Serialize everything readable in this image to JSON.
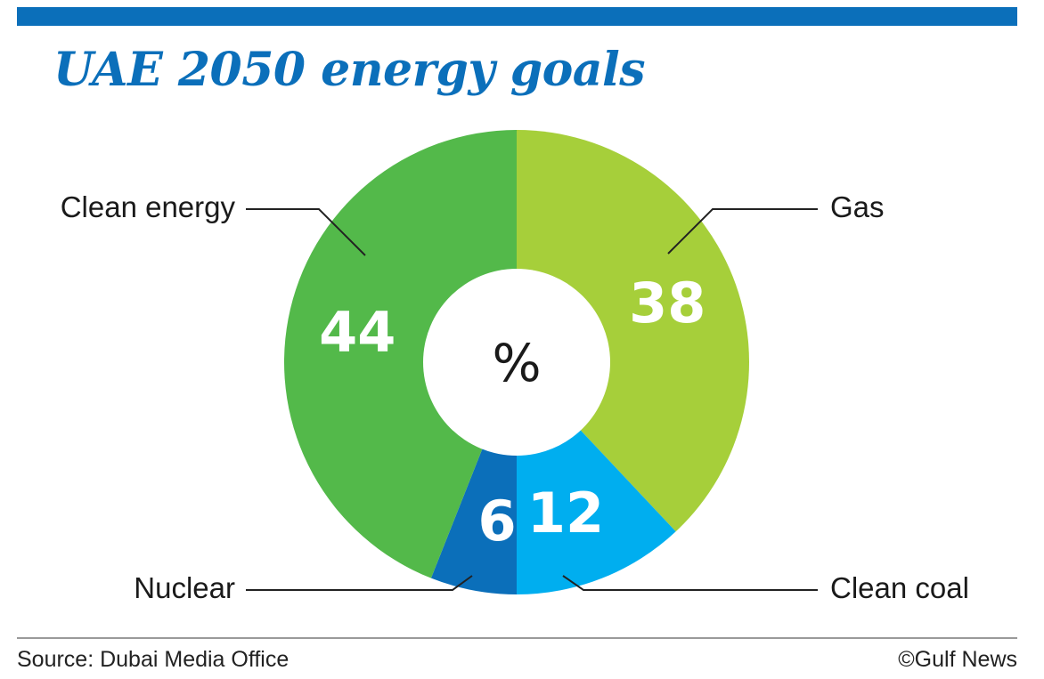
{
  "header": {
    "title": "UAE 2050 energy goals"
  },
  "chart_data": {
    "type": "pie",
    "title": "UAE 2050 energy goals",
    "center_label": "%",
    "slices": [
      {
        "label": "Gas",
        "value": 38,
        "color": "#a6cf3a"
      },
      {
        "label": "Clean coal",
        "value": 12,
        "color": "#00aeef"
      },
      {
        "label": "Nuclear",
        "value": 6,
        "color": "#0b6fba"
      },
      {
        "label": "Clean energy",
        "value": 44,
        "color": "#53b94a"
      }
    ]
  },
  "footer": {
    "source": "Source: Dubai Media Office",
    "credit": "©Gulf News"
  },
  "colors": {
    "accent": "#0b6fba"
  }
}
